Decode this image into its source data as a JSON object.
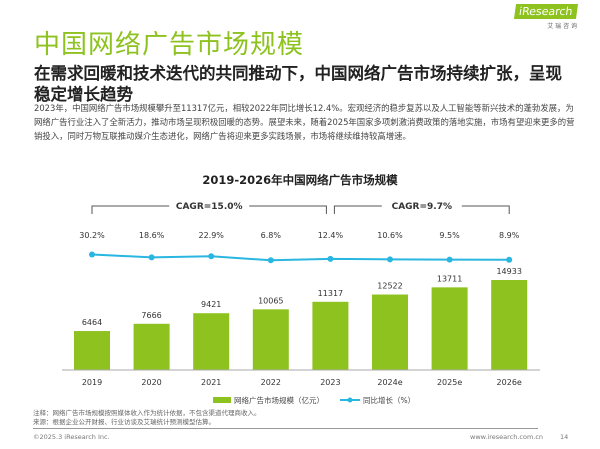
{
  "header": {
    "title": "中国网络广告市场规模",
    "subtitle": "在需求回暖和技术迭代的共同推动下，中国网络广告市场持续扩张，呈现稳定增长趋势",
    "body": "2023年，中国网络广告市场规模攀升至11317亿元，相较2022年同比增长12.4%。宏观经济的稳步复苏以及人工智能等新兴技术的蓬勃发展，为网络广告行业注入了全新活力，推动市场呈现积极回暖的态势。展望未来，随着2025年国家多项刺激消费政策的落地实施，市场有望迎来更多的营销投入，同时万物互联推动媒介生态进化，网络广告将迎来更多实践场景，市场将继续维持较高增速。"
  },
  "logo": {
    "text": "iResearch",
    "sub": "艾 瑞 咨 询"
  },
  "colors": {
    "bar": "#8dc21f",
    "line": "#29b6e0",
    "title": "#8dc21f"
  },
  "chart_data": {
    "type": "bar+line",
    "title": "2019-2026年中国网络广告市场规模",
    "categories": [
      "2019",
      "2020",
      "2021",
      "2022",
      "2023",
      "2024e",
      "2025e",
      "2026e"
    ],
    "series": [
      {
        "name": "网络广告市场规模（亿元）",
        "type": "bar",
        "values": [
          6464,
          7666,
          9421,
          10065,
          11317,
          12522,
          13711,
          14933
        ]
      },
      {
        "name": "同比增长（%）",
        "type": "line",
        "values": [
          30.2,
          18.6,
          22.9,
          6.8,
          12.4,
          10.6,
          9.5,
          8.9
        ],
        "labels": [
          "30.2%",
          "18.6%",
          "22.9%",
          "6.8%",
          "12.4%",
          "10.6%",
          "9.5%",
          "8.9%"
        ]
      }
    ],
    "annotations": [
      {
        "text": "CAGR=15.0%",
        "from": "2019",
        "to": "2023"
      },
      {
        "text": "CAGR=9.7%",
        "from": "2023",
        "to": "2026e"
      }
    ],
    "legend": "bottom",
    "grid": false
  },
  "notes": {
    "note": "注释：网络广告市场规模按照媒体收入作为统计依据，不包含渠道代理商收入。",
    "source": "来源：根据企业公开财报、行业访谈及艾瑞统计预测模型估算。"
  },
  "footer": {
    "copyright": "©2025.3 iResearch Inc.",
    "url": "www.iresearch.com.cn",
    "page": "14"
  }
}
